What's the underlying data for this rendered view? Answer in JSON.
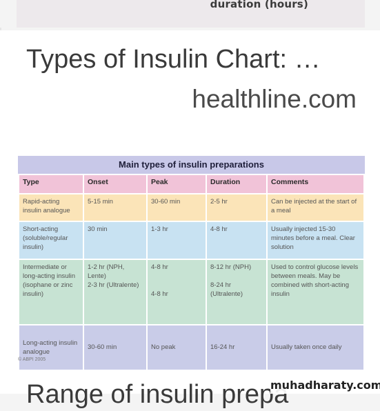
{
  "top_card": {
    "label": "duration (hours)"
  },
  "result": {
    "title": "Types of Insulin Chart: …",
    "source": "healthline.com"
  },
  "table": {
    "caption": "Main types of insulin preparations",
    "headers": [
      "Type",
      "Onset",
      "Peak",
      "Duration",
      "Comments"
    ],
    "rows": [
      [
        "Rapid-acting insulin analogue",
        "5-15 min",
        "30-60 min",
        "2-5 hr",
        "Can be injected at the start of a meal"
      ],
      [
        "Short-acting (soluble/regular insulin)",
        "30 min",
        "1-3 hr",
        "4-8 hr",
        "Usually injected 15-30 minutes before a meal. Clear solution"
      ],
      [
        "Intermediate or long-acting insulin (isophane or zinc insulin)",
        "1-2 hr (NPH, Lente)\n2-3 hr (Ultralente)",
        "4-8 hr\n\n\n4-8 hr",
        "8-12 hr (NPH)\n\n8-24 hr (Ultralente)",
        "Used to control glucose levels between meals. May be combined with short-acting insulin"
      ],
      [
        "Long-acting insulin analogue",
        "30-60 min",
        "No peak",
        "16-24 hr",
        "Usually taken once daily"
      ]
    ],
    "copyright": "© ABPI 2005"
  },
  "next_result": {
    "title": "Range of insulin prepa"
  },
  "watermark": "muhadharaty.com"
}
